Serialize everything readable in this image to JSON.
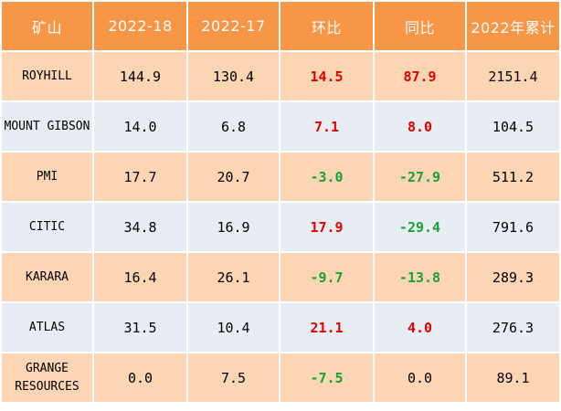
{
  "table": {
    "headers": [
      "矿山",
      "2022-18",
      "2022-17",
      "环比",
      "同比",
      "2022年累计"
    ],
    "rows": [
      {
        "mine": "ROYHILL",
        "w18": "144.9",
        "w17": "130.4",
        "hb": "14.5",
        "hb_sign": "pos",
        "tb": "87.9",
        "tb_sign": "pos",
        "ytd": "2151.4"
      },
      {
        "mine": "MOUNT GIBSON",
        "w18": "14.0",
        "w17": "6.8",
        "hb": "7.1",
        "hb_sign": "pos",
        "tb": "8.0",
        "tb_sign": "pos",
        "ytd": "104.5"
      },
      {
        "mine": "PMI",
        "w18": "17.7",
        "w17": "20.7",
        "hb": "-3.0",
        "hb_sign": "neg",
        "tb": "-27.9",
        "tb_sign": "neg",
        "ytd": "511.2"
      },
      {
        "mine": "CITIC",
        "w18": "34.8",
        "w17": "16.9",
        "hb": "17.9",
        "hb_sign": "pos",
        "tb": "-29.4",
        "tb_sign": "neg",
        "ytd": "791.6"
      },
      {
        "mine": "KARARA",
        "w18": "16.4",
        "w17": "26.1",
        "hb": "-9.7",
        "hb_sign": "neg",
        "tb": "-13.8",
        "tb_sign": "neg",
        "ytd": "289.3"
      },
      {
        "mine": "ATLAS",
        "w18": "31.5",
        "w17": "10.4",
        "hb": "21.1",
        "hb_sign": "pos",
        "tb": "4.0",
        "tb_sign": "pos",
        "ytd": "276.3"
      },
      {
        "mine": "GRANGE RESOURCES",
        "w18": "0.0",
        "w17": "7.5",
        "hb": "-7.5",
        "hb_sign": "neg",
        "tb": "0.0",
        "tb_sign": "zero",
        "ytd": "89.1"
      }
    ]
  },
  "colors": {
    "header_bg": "#f79646",
    "row_odd_bg": "#fcd5b4",
    "row_even_bg": "#e8edf4",
    "positive": "#e00000",
    "negative": "#17a234"
  }
}
